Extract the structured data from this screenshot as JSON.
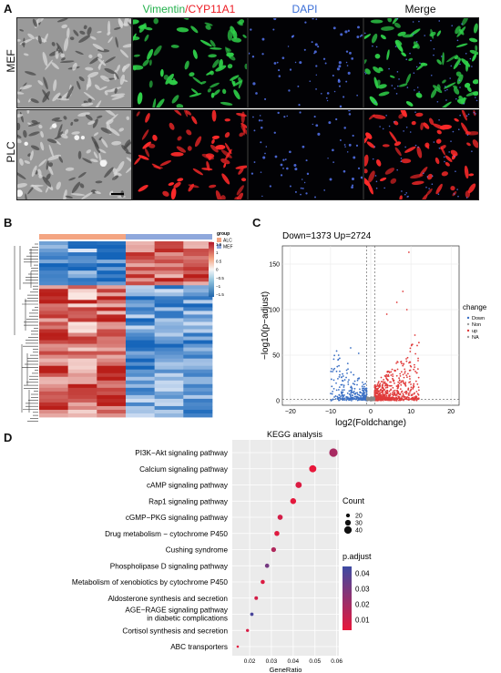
{
  "panel_a": {
    "label": "A",
    "columns": [
      {
        "text": "",
        "color": "#000000"
      },
      {
        "text": "Vimentin",
        "color": "#22b14c",
        "text2": "/CYP11A1",
        "color2": "#ed1c24"
      },
      {
        "text": "DAPI",
        "color": "#3b6fd8"
      },
      {
        "text": "Merge",
        "color": "#000000"
      }
    ],
    "rows": [
      "MEF",
      "PLC"
    ]
  },
  "panel_b": {
    "label": "B",
    "legend_title": "group",
    "legend_items": [
      {
        "name": "ALC",
        "color": "#f4a582"
      },
      {
        "name": "MEF",
        "color": "#8fa8dc"
      }
    ],
    "scale_ticks": [
      "1.5",
      "1",
      "0.5",
      "0",
      "−0.5",
      "−1",
      "−1.5"
    ]
  },
  "panel_c": {
    "label": "C",
    "header": "Down=1373  Up=2724",
    "xlabel": "log2(Foldchange)",
    "ylabel": "−log10(p−adjust)",
    "x_ticks": [
      "−20",
      "−10",
      "0",
      "10",
      "20"
    ],
    "y_ticks": [
      "0",
      "50",
      "100",
      "150"
    ],
    "legend_title": "change",
    "legend_items": [
      {
        "name": "Down",
        "color": "#3a6fc4"
      },
      {
        "name": "Non",
        "color": "#9e9e9e"
      },
      {
        "name": "up",
        "color": "#e03b3b"
      },
      {
        "name": "NA",
        "color": "#9e9e9e"
      }
    ]
  },
  "panel_d": {
    "label": "D",
    "chart_data": {
      "type": "scatter",
      "title": "KEGG analysis",
      "xlabel": "GeneRatio",
      "ylabel": "",
      "x_ticks": [
        "0.02",
        "0.03",
        "0.04",
        "0.05",
        "0.06"
      ],
      "xlim": [
        0.012,
        0.061
      ],
      "points": [
        {
          "term": "PI3K−Akt signaling pathway",
          "x": 0.0585,
          "count": 45,
          "p_adjust": 0.02
        },
        {
          "term": "Calcium signaling pathway",
          "x": 0.049,
          "count": 38,
          "p_adjust": 0.005
        },
        {
          "term": "cAMP signaling pathway",
          "x": 0.0425,
          "count": 33,
          "p_adjust": 0.008
        },
        {
          "term": "Rap1 signaling pathway",
          "x": 0.04,
          "count": 31,
          "p_adjust": 0.006
        },
        {
          "term": "cGMP−PKG signaling pathway",
          "x": 0.034,
          "count": 27,
          "p_adjust": 0.01
        },
        {
          "term": "Drug metabolism − cytochrome P450",
          "x": 0.0325,
          "count": 26,
          "p_adjust": 0.007
        },
        {
          "term": "Cushing syndrome",
          "x": 0.031,
          "count": 25,
          "p_adjust": 0.018
        },
        {
          "term": "Phospholipase D signaling pathway",
          "x": 0.028,
          "count": 22,
          "p_adjust": 0.032
        },
        {
          "term": "Metabolism of xenobiotics by cytochrome P450",
          "x": 0.026,
          "count": 21,
          "p_adjust": 0.008
        },
        {
          "term": "Aldosterone synthesis and secretion",
          "x": 0.023,
          "count": 18,
          "p_adjust": 0.01
        },
        {
          "term": "AGE−RAGE signaling pathway in diabetic complications",
          "x": 0.021,
          "count": 17,
          "p_adjust": 0.042
        },
        {
          "term": "Cortisol synthesis and secretion",
          "x": 0.019,
          "count": 15,
          "p_adjust": 0.009
        },
        {
          "term": "ABC transporters",
          "x": 0.0145,
          "count": 11,
          "p_adjust": 0.006
        }
      ],
      "size_legend": {
        "title": "Count",
        "values": [
          20,
          30,
          40
        ]
      },
      "color_legend": {
        "title": "p.adjust",
        "ticks": [
          "0.04",
          "0.03",
          "0.02",
          "0.01"
        ],
        "low_color": "#e8173a",
        "high_color": "#3d4aa3"
      }
    }
  }
}
